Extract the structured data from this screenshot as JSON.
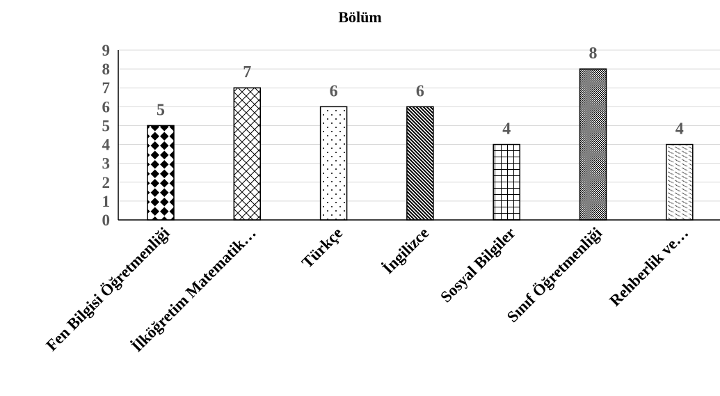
{
  "chart_data": {
    "type": "bar",
    "title": "Bölüm",
    "xlabel": "",
    "ylabel": "",
    "categories": [
      "Fen Bilgisi Öğretmenliği",
      "İlköğretim Matematik…",
      "Türkçe",
      "İngilizce",
      "Sosyal Bilgiler",
      "Sınıf Öğretmenliği",
      "Rehberlik ve…"
    ],
    "values": [
      5,
      7,
      6,
      6,
      4,
      8,
      4
    ],
    "yticks": [
      "0",
      "1",
      "2",
      "3",
      "4",
      "5",
      "6",
      "7",
      "8",
      "9"
    ],
    "ylim": [
      0,
      9
    ],
    "grid": true,
    "legend": "none",
    "data_labels": true,
    "bar_patterns": [
      "diamond",
      "crosshatch",
      "dots",
      "diagonal",
      "grid",
      "dense-dots",
      "wave"
    ],
    "colors": {
      "bar_fill": "#000000",
      "label": "#595959",
      "gridline": "#d9d9d9",
      "axis": "#000000"
    }
  }
}
